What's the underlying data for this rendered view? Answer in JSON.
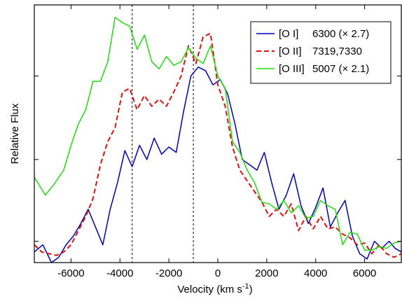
{
  "chart_data": {
    "type": "line",
    "xlabel": "Velocity (km s",
    "xlabel_sup": "-1",
    "xlabel_close": ")",
    "ylabel": "Relative Flux",
    "xlim": [
      -7500,
      7500
    ],
    "ylim": [
      0,
      1.45
    ],
    "xticks": [
      -6000,
      -4000,
      -2000,
      0,
      2000,
      4000,
      6000
    ],
    "xtick_labels": [
      "-6000",
      "-4000",
      "-2000",
      "0",
      "2000",
      "4000",
      "6000"
    ],
    "yticks": [
      0.12,
      0.58,
      1.05
    ],
    "vlines": [
      -3500,
      -1000
    ],
    "legend_position": "top-right",
    "series": [
      {
        "name": "[O I]",
        "name_suffix": "6300 (× 2.7)",
        "color": "#0000b4",
        "style": "solid",
        "x": [
          -7500,
          -7150,
          -6800,
          -6500,
          -6200,
          -5900,
          -5600,
          -5300,
          -5000,
          -4700,
          -4400,
          -4100,
          -3800,
          -3500,
          -3200,
          -2900,
          -2600,
          -2300,
          -2000,
          -1700,
          -1400,
          -1100,
          -800,
          -500,
          -200,
          100,
          400,
          700,
          1000,
          1300,
          1600,
          1900,
          2200,
          2500,
          2800,
          3100,
          3400,
          3700,
          4000,
          4300,
          4600,
          4900,
          5200,
          5500,
          5800,
          6100,
          6400,
          6700,
          7000,
          7250,
          7500
        ],
        "y": [
          0.06,
          0.1,
          0.0,
          0.03,
          0.1,
          0.15,
          0.22,
          0.3,
          0.2,
          0.1,
          0.3,
          0.45,
          0.63,
          0.54,
          0.66,
          0.58,
          0.7,
          0.61,
          0.65,
          0.62,
          0.85,
          1.05,
          1.1,
          1.08,
          1.0,
          1.03,
          0.95,
          0.78,
          0.58,
          0.55,
          0.52,
          0.62,
          0.45,
          0.3,
          0.38,
          0.5,
          0.32,
          0.22,
          0.31,
          0.42,
          0.2,
          0.28,
          0.35,
          0.15,
          0.05,
          0.02,
          0.12,
          0.08,
          0.12,
          0.08,
          0.06
        ]
      },
      {
        "name": "[O II]",
        "name_suffix": "7319,7330",
        "color": "#e01010",
        "style": "dashed",
        "x": [
          -7500,
          -7200,
          -6900,
          -6600,
          -6300,
          -6000,
          -5700,
          -5400,
          -5100,
          -4800,
          -4500,
          -4200,
          -3900,
          -3600,
          -3300,
          -3000,
          -2700,
          -2400,
          -2100,
          -1800,
          -1500,
          -1200,
          -900,
          -600,
          -300,
          0,
          300,
          600,
          900,
          1200,
          1500,
          1800,
          2100,
          2400,
          2700,
          3000,
          3300,
          3600,
          3900,
          4200,
          4500,
          4800,
          5100,
          5400,
          5700,
          6000,
          6300,
          6600,
          6900,
          7200,
          7500
        ],
        "y": [
          0.1,
          0.06,
          0.05,
          0.04,
          0.06,
          0.1,
          0.18,
          0.26,
          0.36,
          0.55,
          0.68,
          0.76,
          0.96,
          0.98,
          0.86,
          0.94,
          0.88,
          0.92,
          0.88,
          0.96,
          1.05,
          1.22,
          1.12,
          1.27,
          1.29,
          1.0,
          0.88,
          0.65,
          0.52,
          0.46,
          0.4,
          0.34,
          0.26,
          0.3,
          0.26,
          0.33,
          0.18,
          0.26,
          0.19,
          0.26,
          0.19,
          0.2,
          0.16,
          0.14,
          0.1,
          0.11,
          0.05,
          0.1,
          0.05,
          0.03,
          0.05
        ]
      },
      {
        "name": "[O III]",
        "name_suffix": "5007 (× 2.1)",
        "color": "#22dd10",
        "style": "solid",
        "x": [
          -7500,
          -7050,
          -6700,
          -6300,
          -6000,
          -5700,
          -5400,
          -5100,
          -4800,
          -4500,
          -4200,
          -3900,
          -3600,
          -3300,
          -3000,
          -2700,
          -2400,
          -2100,
          -1800,
          -1500,
          -1200,
          -900,
          -600,
          -300,
          0,
          300,
          600,
          900,
          1200,
          1500,
          1800,
          2100,
          2400,
          2700,
          3000,
          3300,
          3600,
          3900,
          4200,
          4500,
          4800,
          5100,
          5400,
          5700,
          6000,
          6300,
          6600,
          6900,
          7200,
          7500
        ],
        "y": [
          0.48,
          0.38,
          0.44,
          0.52,
          0.66,
          0.78,
          0.86,
          1.02,
          1.02,
          1.13,
          1.38,
          1.35,
          1.33,
          1.2,
          1.28,
          1.13,
          1.09,
          1.16,
          1.11,
          1.13,
          1.21,
          1.15,
          1.12,
          1.22,
          1.05,
          0.98,
          0.68,
          0.62,
          0.52,
          0.45,
          0.34,
          0.33,
          0.3,
          0.35,
          0.28,
          0.32,
          0.25,
          0.26,
          0.35,
          0.32,
          0.3,
          0.1,
          0.17,
          0.16,
          0.07,
          0.07,
          0.09,
          0.08,
          0.11,
          0.12
        ]
      }
    ]
  }
}
